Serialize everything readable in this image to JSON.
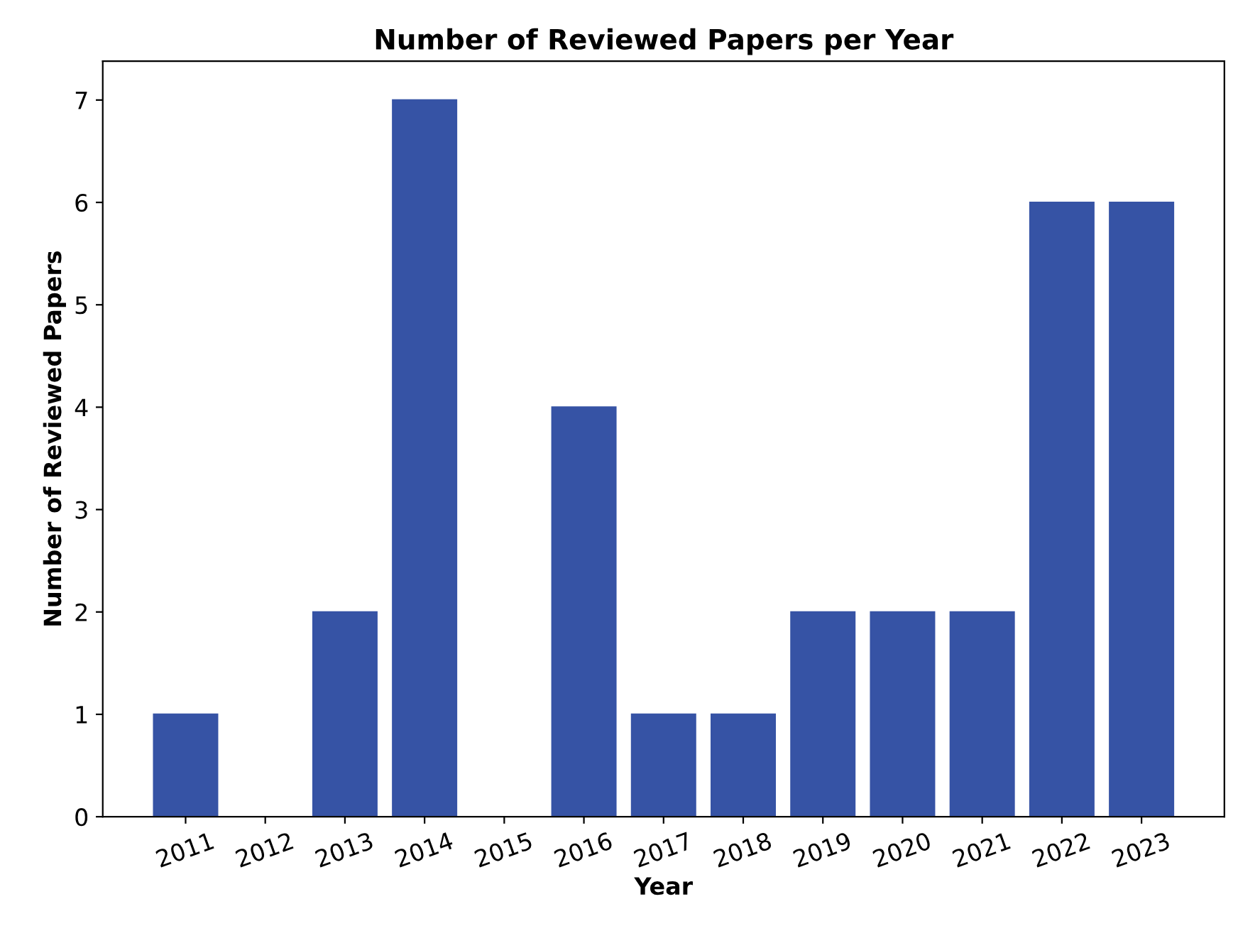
{
  "chart_data": {
    "type": "bar",
    "title": "Number of Reviewed Papers per Year",
    "xlabel": "Year",
    "ylabel": "Number of Reviewed Papers",
    "categories": [
      "2011",
      "2012",
      "2013",
      "2014",
      "2015",
      "2016",
      "2017",
      "2018",
      "2019",
      "2020",
      "2021",
      "2022",
      "2023"
    ],
    "values": [
      1,
      0,
      2,
      7,
      0,
      4,
      1,
      1,
      2,
      2,
      2,
      6,
      6
    ],
    "color": "#3653a5",
    "ylim": [
      0,
      7.38
    ],
    "yticks": [
      0,
      1,
      2,
      3,
      4,
      5,
      6,
      7
    ],
    "grid": false,
    "legend": false
  }
}
